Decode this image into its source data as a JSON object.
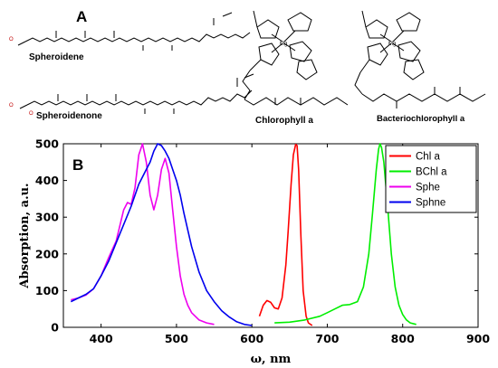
{
  "panel_a": {
    "label": "A",
    "structures": [
      {
        "id": "spheroidene",
        "name": "Spheroidene"
      },
      {
        "id": "spheroidenone",
        "name": "Spheroidenone"
      },
      {
        "id": "chlorophyll-a",
        "name": "Chlorophyll a"
      },
      {
        "id": "bacteriochlorophyll-a",
        "name": "Bacteriochlorophyll a"
      }
    ]
  },
  "panel_b": {
    "label": "B"
  },
  "chart_data": {
    "type": "line",
    "title": "",
    "xlabel": "ω, nm",
    "ylabel": "Absorption, a.u.",
    "xlim": [
      350,
      900
    ],
    "ylim": [
      0,
      500
    ],
    "xticks": [
      400,
      500,
      600,
      700,
      800,
      900
    ],
    "yticks": [
      0,
      100,
      200,
      300,
      400,
      500
    ],
    "grid": false,
    "legend_position": "top-right",
    "series": [
      {
        "name": "Chl a",
        "color": "#ff0000",
        "x": [
          610,
          615,
          620,
          625,
          630,
          635,
          640,
          645,
          648,
          652,
          655,
          658,
          660,
          662,
          665,
          668,
          672,
          675,
          680
        ],
        "y": [
          30,
          60,
          73,
          68,
          53,
          50,
          80,
          170,
          260,
          390,
          470,
          498,
          495,
          430,
          250,
          100,
          30,
          12,
          5
        ]
      },
      {
        "name": "BChl a",
        "color": "#00ee00",
        "x": [
          630,
          650,
          670,
          690,
          700,
          710,
          720,
          730,
          740,
          748,
          755,
          760,
          765,
          768,
          770,
          772,
          775,
          780,
          785,
          790,
          795,
          800,
          805,
          810,
          818
        ],
        "y": [
          12,
          14,
          20,
          30,
          40,
          50,
          60,
          62,
          70,
          110,
          200,
          310,
          430,
          485,
          500,
          490,
          450,
          330,
          200,
          110,
          60,
          35,
          20,
          12,
          8
        ]
      },
      {
        "name": "Sphe",
        "color": "#ee00ee",
        "x": [
          360,
          370,
          380,
          390,
          400,
          410,
          420,
          430,
          435,
          440,
          445,
          450,
          455,
          460,
          465,
          470,
          475,
          480,
          485,
          490,
          495,
          500,
          505,
          510,
          515,
          520,
          530,
          540,
          550
        ],
        "y": [
          75,
          80,
          88,
          105,
          140,
          190,
          235,
          320,
          340,
          335,
          380,
          470,
          500,
          450,
          360,
          320,
          360,
          430,
          460,
          420,
          320,
          220,
          140,
          90,
          60,
          40,
          20,
          12,
          8
        ]
      },
      {
        "name": "Sphne",
        "color": "#0000ee",
        "x": [
          360,
          370,
          380,
          390,
          400,
          410,
          420,
          430,
          440,
          450,
          460,
          465,
          470,
          475,
          480,
          485,
          490,
          495,
          500,
          505,
          510,
          520,
          530,
          540,
          550,
          560,
          570,
          580,
          590,
          600
        ],
        "y": [
          70,
          80,
          90,
          105,
          140,
          180,
          230,
          280,
          330,
          390,
          430,
          450,
          480,
          500,
          495,
          480,
          460,
          430,
          400,
          360,
          310,
          220,
          150,
          100,
          70,
          45,
          28,
          15,
          8,
          5
        ]
      }
    ]
  }
}
